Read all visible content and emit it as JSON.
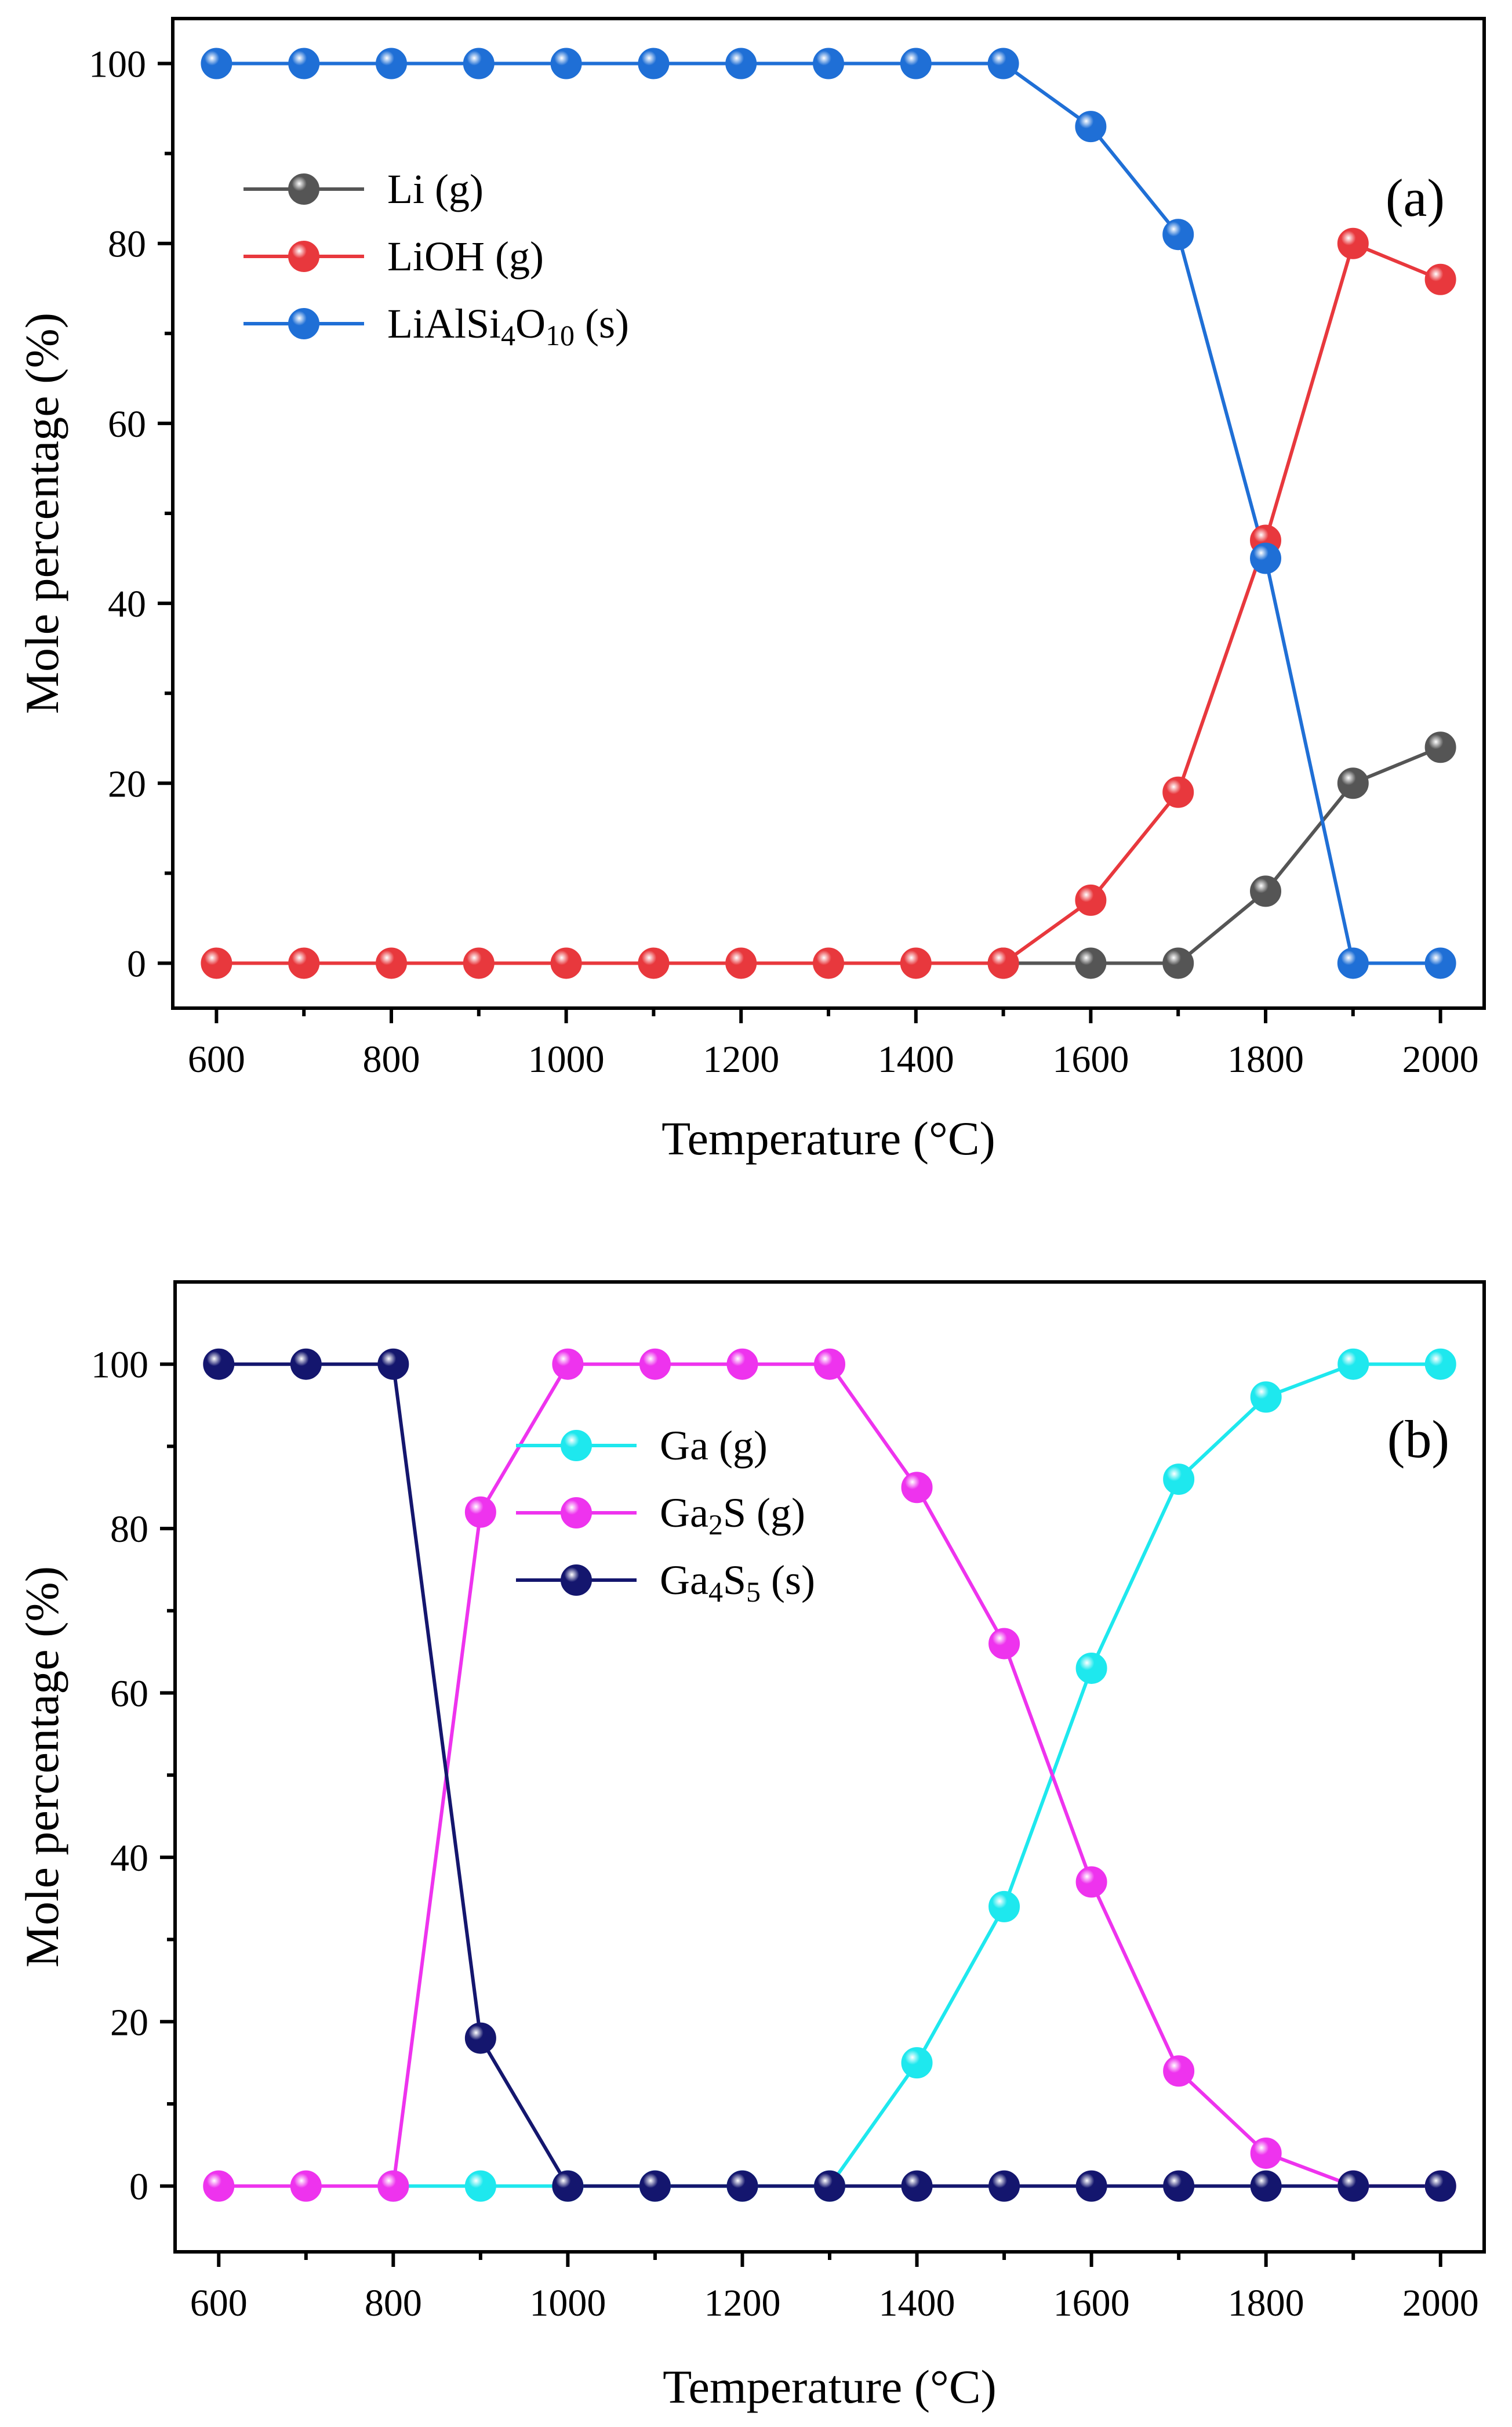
{
  "chart_data": [
    {
      "id": "a",
      "type": "line",
      "panel_label": "(a)",
      "xlabel": "Temperature (°C)",
      "ylabel": "Mole percentage (%)",
      "xlim": [
        550,
        2050
      ],
      "ylim": [
        -5,
        105
      ],
      "xticks": [
        "600",
        "800",
        "1000",
        "1200",
        "1400",
        "1600",
        "1800",
        "2000"
      ],
      "yticks": [
        "0",
        "20",
        "40",
        "60",
        "80",
        "100"
      ],
      "legend_position": "top-left",
      "x": [
        600,
        700,
        800,
        900,
        1000,
        1100,
        1200,
        1300,
        1400,
        1500,
        1600,
        1700,
        1800,
        1900,
        2000
      ],
      "series": [
        {
          "name": "Li (g)",
          "label_parts": [
            {
              "t": "Li (g)",
              "sub": false
            }
          ],
          "color": "#555555",
          "x": [
            1500,
            1600,
            1700,
            1800,
            1900,
            2000
          ],
          "values": [
            0,
            0,
            0,
            8,
            20,
            24
          ]
        },
        {
          "name": "LiOH (g)",
          "label_parts": [
            {
              "t": "LiOH (g)",
              "sub": false
            }
          ],
          "color": "#e8383d",
          "values": [
            0,
            0,
            0,
            0,
            0,
            0,
            0,
            0,
            0,
            0,
            7,
            19,
            47,
            80,
            76
          ]
        },
        {
          "name": "LiAlSi4O10 (s)",
          "label_parts": [
            {
              "t": "LiAlSi",
              "sub": false
            },
            {
              "t": "4",
              "sub": true
            },
            {
              "t": "O",
              "sub": false
            },
            {
              "t": "10",
              "sub": true
            },
            {
              "t": " (s)",
              "sub": false
            }
          ],
          "color": "#1f6fd6",
          "values": [
            100,
            100,
            100,
            100,
            100,
            100,
            100,
            100,
            100,
            100,
            93,
            81,
            45,
            0,
            0
          ]
        }
      ]
    },
    {
      "id": "b",
      "type": "line",
      "panel_label": "(b)",
      "xlabel": "Temperature (°C)",
      "ylabel": "Mole percentage (%)",
      "xlim": [
        550,
        2050
      ],
      "ylim": [
        -8,
        110
      ],
      "xticks": [
        "600",
        "800",
        "1000",
        "1200",
        "1400",
        "1600",
        "1800",
        "2000"
      ],
      "yticks": [
        "0",
        "20",
        "40",
        "60",
        "80",
        "100"
      ],
      "legend_position": "top-center",
      "x": [
        600,
        700,
        800,
        900,
        1000,
        1100,
        1200,
        1300,
        1400,
        1500,
        1600,
        1700,
        1800,
        1900,
        2000
      ],
      "series": [
        {
          "name": "Ga (g)",
          "label_parts": [
            {
              "t": "Ga (g)",
              "sub": false
            }
          ],
          "color": "#1ee8ee",
          "x": [
            800,
            900,
            1000,
            1100,
            1200,
            1300,
            1400,
            1500,
            1600,
            1700,
            1800,
            1900,
            2000
          ],
          "values": [
            0,
            0,
            0,
            0,
            0,
            0,
            15,
            34,
            63,
            86,
            96,
            100,
            100
          ]
        },
        {
          "name": "Ga2S (g)",
          "label_parts": [
            {
              "t": "Ga",
              "sub": false
            },
            {
              "t": "2",
              "sub": true
            },
            {
              "t": "S (g)",
              "sub": false
            }
          ],
          "color": "#ee33ee",
          "values": [
            0,
            0,
            0,
            82,
            100,
            100,
            100,
            100,
            85,
            66,
            37,
            14,
            4,
            0,
            0
          ]
        },
        {
          "name": "Ga4S5 (s)",
          "label_parts": [
            {
              "t": "Ga",
              "sub": false
            },
            {
              "t": "4",
              "sub": true
            },
            {
              "t": "S",
              "sub": false
            },
            {
              "t": "5",
              "sub": true
            },
            {
              "t": " (s)",
              "sub": false
            }
          ],
          "color": "#14166e",
          "values": [
            100,
            100,
            100,
            18,
            0,
            0,
            0,
            0,
            0,
            0,
            0,
            0,
            0,
            0,
            0
          ]
        }
      ]
    }
  ]
}
